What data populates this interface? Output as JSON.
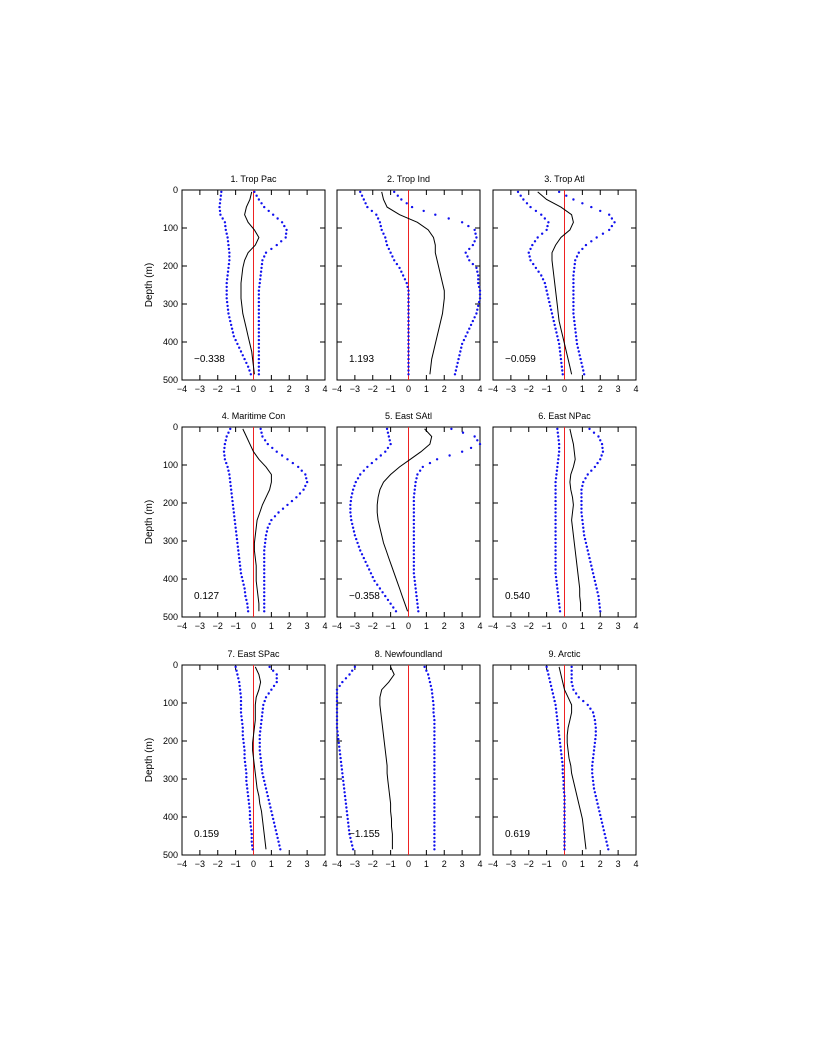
{
  "colors": {
    "mean": "#000000",
    "bounds": "#1010ee",
    "zero": "#ee2222",
    "axis": "#000000"
  },
  "chart_data": [
    {
      "type": "line",
      "title": "1. Trop Pac",
      "annotation": "−0.338",
      "xlim": [
        -4,
        4
      ],
      "ylim": [
        0,
        500
      ],
      "y_inverted": true,
      "xlabel": "",
      "ylabel": "Depth (m)",
      "xticks": [
        "−4",
        "−3",
        "−2",
        "−1",
        "0",
        "1",
        "2",
        "3",
        "4"
      ],
      "yticks": [
        "0",
        "100",
        "200",
        "300",
        "400",
        "500"
      ],
      "depth": [
        5,
        25,
        45,
        65,
        85,
        105,
        125,
        145,
        165,
        185,
        205,
        225,
        245,
        265,
        285,
        305,
        325,
        345,
        365,
        385,
        405,
        425,
        445,
        465,
        485
      ],
      "mean": [
        -0.1,
        -0.2,
        -0.4,
        -0.5,
        -0.3,
        0.05,
        0.3,
        0.1,
        -0.3,
        -0.5,
        -0.6,
        -0.65,
        -0.7,
        -0.7,
        -0.7,
        -0.65,
        -0.6,
        -0.5,
        -0.4,
        -0.3,
        -0.2,
        -0.1,
        -0.05,
        0,
        0.05
      ],
      "lower": [
        -1.8,
        -1.85,
        -1.9,
        -1.85,
        -1.6,
        -1.55,
        -1.45,
        -1.4,
        -1.35,
        -1.35,
        -1.4,
        -1.45,
        -1.5,
        -1.5,
        -1.5,
        -1.45,
        -1.4,
        -1.3,
        -1.2,
        -1.1,
        -0.9,
        -0.7,
        -0.5,
        -0.3,
        -0.15
      ],
      "upper": [
        0.05,
        0.3,
        0.6,
        1.1,
        1.6,
        1.85,
        1.8,
        1.3,
        0.7,
        0.5,
        0.45,
        0.4,
        0.35,
        0.3,
        0.3,
        0.3,
        0.3,
        0.3,
        0.3,
        0.3,
        0.3,
        0.3,
        0.3,
        0.3,
        0.3
      ]
    },
    {
      "type": "line",
      "title": "2. Trop Ind",
      "annotation": "1.193",
      "xlim": [
        -4,
        4
      ],
      "ylim": [
        0,
        500
      ],
      "y_inverted": true,
      "xlabel": "",
      "ylabel": "",
      "xticks": [
        "−4",
        "−3",
        "−2",
        "−1",
        "0",
        "1",
        "2",
        "3",
        "4"
      ],
      "yticks": [
        "0",
        "100",
        "200",
        "300",
        "400",
        "500"
      ],
      "depth": [
        5,
        25,
        45,
        65,
        85,
        105,
        125,
        145,
        165,
        185,
        205,
        225,
        245,
        265,
        285,
        305,
        325,
        345,
        365,
        385,
        405,
        425,
        445,
        465,
        485
      ],
      "mean": [
        -1.5,
        -1.4,
        -1.2,
        -0.5,
        0.5,
        1.1,
        1.4,
        1.5,
        1.5,
        1.6,
        1.7,
        1.8,
        1.9,
        2.0,
        2.0,
        1.95,
        1.9,
        1.8,
        1.7,
        1.6,
        1.5,
        1.4,
        1.3,
        1.25,
        1.2
      ],
      "lower": [
        -2.7,
        -2.5,
        -2.3,
        -1.8,
        -1.6,
        -1.5,
        -1.3,
        -1.2,
        -1.0,
        -0.8,
        -0.5,
        -0.3,
        -0.1,
        0,
        0,
        0,
        0,
        0,
        0,
        0,
        0,
        0,
        0,
        0,
        0
      ],
      "upper": [
        -0.8,
        -0.4,
        0.2,
        1.5,
        3.0,
        3.7,
        3.8,
        3.6,
        3.2,
        3.4,
        3.8,
        3.9,
        3.9,
        4.0,
        4.0,
        3.9,
        3.8,
        3.6,
        3.4,
        3.2,
        3.0,
        2.9,
        2.8,
        2.7,
        2.6
      ]
    },
    {
      "type": "line",
      "title": "3. Trop Atl",
      "annotation": "−0.059",
      "xlim": [
        -4,
        4
      ],
      "ylim": [
        0,
        500
      ],
      "y_inverted": true,
      "xlabel": "",
      "ylabel": "",
      "xticks": [
        "−4",
        "−3",
        "−2",
        "−1",
        "0",
        "1",
        "2",
        "3",
        "4"
      ],
      "yticks": [
        "0",
        "100",
        "200",
        "300",
        "400",
        "500"
      ],
      "depth": [
        5,
        25,
        45,
        65,
        85,
        105,
        125,
        145,
        165,
        185,
        205,
        225,
        245,
        265,
        285,
        305,
        325,
        345,
        365,
        385,
        405,
        425,
        445,
        465,
        485
      ],
      "mean": [
        -1.5,
        -1.0,
        -0.2,
        0.4,
        0.5,
        0.3,
        -0.2,
        -0.5,
        -0.7,
        -0.7,
        -0.65,
        -0.6,
        -0.55,
        -0.5,
        -0.45,
        -0.4,
        -0.35,
        -0.3,
        -0.2,
        -0.1,
        0,
        0.1,
        0.2,
        0.3,
        0.4
      ],
      "lower": [
        -2.6,
        -2.3,
        -1.9,
        -1.3,
        -0.9,
        -1.0,
        -1.5,
        -1.8,
        -2.0,
        -1.9,
        -1.6,
        -1.3,
        -1.1,
        -1.0,
        -0.9,
        -0.8,
        -0.7,
        -0.6,
        -0.5,
        -0.4,
        -0.3,
        -0.25,
        -0.2,
        -0.15,
        -0.1
      ],
      "upper": [
        -0.3,
        0.5,
        1.5,
        2.5,
        2.8,
        2.5,
        1.8,
        1.2,
        0.8,
        0.6,
        0.55,
        0.5,
        0.5,
        0.5,
        0.5,
        0.5,
        0.5,
        0.55,
        0.6,
        0.65,
        0.7,
        0.8,
        0.9,
        1.0,
        1.1
      ]
    },
    {
      "type": "line",
      "title": "4. Maritime Con",
      "annotation": "0.127",
      "xlim": [
        -4,
        4
      ],
      "ylim": [
        0,
        500
      ],
      "y_inverted": true,
      "xlabel": "",
      "ylabel": "Depth (m)",
      "xticks": [
        "−4",
        "−3",
        "−2",
        "−1",
        "0",
        "1",
        "2",
        "3",
        "4"
      ],
      "yticks": [
        "0",
        "100",
        "200",
        "300",
        "400",
        "500"
      ],
      "depth": [
        5,
        25,
        45,
        65,
        85,
        105,
        125,
        145,
        165,
        185,
        205,
        225,
        245,
        265,
        285,
        305,
        325,
        345,
        365,
        385,
        405,
        425,
        445,
        465,
        485
      ],
      "mean": [
        -0.6,
        -0.4,
        -0.2,
        0,
        0.3,
        0.7,
        1.0,
        1.0,
        0.9,
        0.7,
        0.5,
        0.35,
        0.2,
        0.15,
        0.1,
        0.05,
        0.05,
        0.1,
        0.15,
        0.15,
        0.15,
        0.2,
        0.25,
        0.3,
        0.3
      ],
      "lower": [
        -1.3,
        -1.5,
        -1.6,
        -1.65,
        -1.6,
        -1.45,
        -1.35,
        -1.3,
        -1.25,
        -1.2,
        -1.15,
        -1.1,
        -1.05,
        -1.0,
        -0.95,
        -0.9,
        -0.85,
        -0.8,
        -0.75,
        -0.7,
        -0.6,
        -0.5,
        -0.45,
        -0.35,
        -0.3
      ],
      "upper": [
        0.4,
        0.5,
        0.8,
        1.3,
        1.9,
        2.5,
        2.9,
        3.0,
        2.8,
        2.4,
        1.9,
        1.4,
        1.0,
        0.8,
        0.7,
        0.65,
        0.6,
        0.6,
        0.6,
        0.6,
        0.6,
        0.6,
        0.6,
        0.6,
        0.6
      ]
    },
    {
      "type": "line",
      "title": "5. East SAtl",
      "annotation": "−0.358",
      "xlim": [
        -4,
        4
      ],
      "ylim": [
        0,
        500
      ],
      "y_inverted": true,
      "xlabel": "",
      "ylabel": "",
      "xticks": [
        "−4",
        "−3",
        "−2",
        "−1",
        "0",
        "1",
        "2",
        "3",
        "4"
      ],
      "yticks": [
        "0",
        "100",
        "200",
        "300",
        "400",
        "500"
      ],
      "depth": [
        5,
        25,
        45,
        65,
        85,
        105,
        125,
        145,
        165,
        185,
        205,
        225,
        245,
        265,
        285,
        305,
        325,
        345,
        365,
        385,
        405,
        425,
        445,
        465,
        485
      ],
      "mean": [
        0.9,
        1.3,
        1.2,
        0.7,
        0.1,
        -0.5,
        -1.0,
        -1.4,
        -1.6,
        -1.7,
        -1.75,
        -1.75,
        -1.7,
        -1.6,
        -1.5,
        -1.4,
        -1.25,
        -1.1,
        -0.95,
        -0.8,
        -0.65,
        -0.5,
        -0.35,
        -0.2,
        -0.05
      ],
      "lower": [
        -1.2,
        -1.1,
        -1.0,
        -1.3,
        -1.8,
        -2.3,
        -2.7,
        -2.95,
        -3.1,
        -3.2,
        -3.25,
        -3.25,
        -3.2,
        -3.1,
        -3.0,
        -2.85,
        -2.7,
        -2.5,
        -2.3,
        -2.1,
        -1.9,
        -1.6,
        -1.3,
        -1.0,
        -0.7
      ],
      "upper": [
        2.4,
        3.7,
        4.0,
        3.0,
        1.6,
        0.8,
        0.5,
        0.4,
        0.35,
        0.3,
        0.3,
        0.3,
        0.3,
        0.3,
        0.3,
        0.3,
        0.3,
        0.3,
        0.3,
        0.3,
        0.35,
        0.4,
        0.45,
        0.5,
        0.55
      ]
    },
    {
      "type": "line",
      "title": "6. East NPac",
      "annotation": "0.540",
      "xlim": [
        -4,
        4
      ],
      "ylim": [
        0,
        500
      ],
      "y_inverted": true,
      "xlabel": "",
      "ylabel": "",
      "xticks": [
        "−4",
        "−3",
        "−2",
        "−1",
        "0",
        "1",
        "2",
        "3",
        "4"
      ],
      "yticks": [
        "0",
        "100",
        "200",
        "300",
        "400",
        "500"
      ],
      "depth": [
        5,
        25,
        45,
        65,
        85,
        105,
        125,
        145,
        165,
        185,
        205,
        225,
        245,
        265,
        285,
        305,
        325,
        345,
        365,
        385,
        405,
        425,
        445,
        465,
        485
      ],
      "mean": [
        0.3,
        0.4,
        0.5,
        0.55,
        0.6,
        0.5,
        0.35,
        0.3,
        0.35,
        0.45,
        0.5,
        0.45,
        0.4,
        0.45,
        0.5,
        0.55,
        0.6,
        0.65,
        0.7,
        0.75,
        0.8,
        0.85,
        0.85,
        0.9,
        0.9
      ],
      "lower": [
        -0.4,
        -0.35,
        -0.3,
        -0.3,
        -0.35,
        -0.4,
        -0.45,
        -0.5,
        -0.5,
        -0.5,
        -0.5,
        -0.5,
        -0.5,
        -0.5,
        -0.5,
        -0.5,
        -0.5,
        -0.5,
        -0.5,
        -0.5,
        -0.45,
        -0.4,
        -0.35,
        -0.3,
        -0.25
      ],
      "upper": [
        1.4,
        1.9,
        2.1,
        2.15,
        2.0,
        1.7,
        1.3,
        1.05,
        0.95,
        0.95,
        0.95,
        0.95,
        1.0,
        1.05,
        1.1,
        1.2,
        1.3,
        1.4,
        1.5,
        1.6,
        1.7,
        1.8,
        1.9,
        1.95,
        2.0
      ]
    },
    {
      "type": "line",
      "title": "7. East SPac",
      "annotation": "0.159",
      "xlim": [
        -4,
        4
      ],
      "ylim": [
        0,
        500
      ],
      "y_inverted": true,
      "xlabel": "",
      "ylabel": "Depth (m)",
      "xticks": [
        "−4",
        "−3",
        "−2",
        "−1",
        "0",
        "1",
        "2",
        "3",
        "4"
      ],
      "yticks": [
        "0",
        "100",
        "200",
        "300",
        "400",
        "500"
      ],
      "depth": [
        5,
        25,
        45,
        65,
        85,
        105,
        125,
        145,
        165,
        185,
        205,
        225,
        245,
        265,
        285,
        305,
        325,
        345,
        365,
        385,
        405,
        425,
        445,
        465,
        485
      ],
      "mean": [
        0.1,
        0.3,
        0.4,
        0.3,
        0.15,
        0.1,
        0.1,
        0.1,
        0.05,
        0.0,
        -0.05,
        -0.05,
        0.0,
        0.05,
        0.1,
        0.15,
        0.2,
        0.3,
        0.35,
        0.45,
        0.5,
        0.55,
        0.6,
        0.65,
        0.7
      ],
      "lower": [
        -1.0,
        -0.9,
        -0.8,
        -0.75,
        -0.7,
        -0.7,
        -0.7,
        -0.65,
        -0.6,
        -0.6,
        -0.55,
        -0.5,
        -0.5,
        -0.45,
        -0.4,
        -0.4,
        -0.35,
        -0.3,
        -0.25,
        -0.2,
        -0.2,
        -0.15,
        -0.1,
        -0.1,
        -0.05
      ],
      "upper": [
        0.9,
        1.3,
        1.3,
        1.0,
        0.7,
        0.55,
        0.5,
        0.45,
        0.4,
        0.35,
        0.35,
        0.35,
        0.4,
        0.45,
        0.5,
        0.6,
        0.7,
        0.8,
        0.9,
        1.0,
        1.1,
        1.2,
        1.3,
        1.4,
        1.5
      ]
    },
    {
      "type": "line",
      "title": "8. Newfoundland",
      "annotation": "−1.155",
      "xlim": [
        -4,
        4
      ],
      "ylim": [
        0,
        500
      ],
      "y_inverted": true,
      "xlabel": "",
      "ylabel": "",
      "xticks": [
        "−4",
        "−3",
        "−2",
        "−1",
        "0",
        "1",
        "2",
        "3",
        "4"
      ],
      "yticks": [
        "0",
        "100",
        "200",
        "300",
        "400",
        "500"
      ],
      "depth": [
        5,
        25,
        45,
        65,
        85,
        105,
        125,
        145,
        165,
        185,
        205,
        225,
        245,
        265,
        285,
        305,
        325,
        345,
        365,
        385,
        405,
        425,
        445,
        465,
        485
      ],
      "mean": [
        -1.0,
        -0.8,
        -1.1,
        -1.5,
        -1.6,
        -1.6,
        -1.55,
        -1.5,
        -1.45,
        -1.4,
        -1.35,
        -1.3,
        -1.25,
        -1.2,
        -1.2,
        -1.15,
        -1.1,
        -1.05,
        -1.0,
        -1.0,
        -0.95,
        -0.95,
        -0.9,
        -0.9,
        -0.9
      ],
      "lower": [
        -3.0,
        -3.3,
        -3.7,
        -4.0,
        -4.0,
        -4.0,
        -4.0,
        -4.0,
        -4.0,
        -3.95,
        -3.9,
        -3.85,
        -3.8,
        -3.75,
        -3.7,
        -3.65,
        -3.6,
        -3.55,
        -3.5,
        -3.45,
        -3.4,
        -3.35,
        -3.3,
        -3.2,
        -3.1
      ],
      "upper": [
        0.9,
        1.1,
        1.2,
        1.3,
        1.35,
        1.4,
        1.4,
        1.45,
        1.45,
        1.45,
        1.45,
        1.45,
        1.45,
        1.45,
        1.45,
        1.45,
        1.45,
        1.45,
        1.45,
        1.45,
        1.45,
        1.45,
        1.45,
        1.45,
        1.45
      ]
    },
    {
      "type": "line",
      "title": "9. Arctic",
      "annotation": "0.619",
      "xlim": [
        -4,
        4
      ],
      "ylim": [
        0,
        500
      ],
      "y_inverted": true,
      "xlabel": "",
      "ylabel": "",
      "xticks": [
        "−4",
        "−3",
        "−2",
        "−1",
        "0",
        "1",
        "2",
        "3",
        "4"
      ],
      "yticks": [
        "0",
        "100",
        "200",
        "300",
        "400",
        "500"
      ],
      "depth": [
        5,
        25,
        45,
        65,
        85,
        105,
        125,
        145,
        165,
        185,
        205,
        225,
        245,
        265,
        285,
        305,
        325,
        345,
        365,
        385,
        405,
        425,
        445,
        465,
        485
      ],
      "mean": [
        -0.3,
        -0.2,
        -0.1,
        0.0,
        0.2,
        0.4,
        0.4,
        0.3,
        0.2,
        0.15,
        0.15,
        0.2,
        0.25,
        0.35,
        0.4,
        0.5,
        0.6,
        0.7,
        0.8,
        0.9,
        1.0,
        1.05,
        1.1,
        1.15,
        1.2
      ],
      "lower": [
        -1.0,
        -0.9,
        -0.8,
        -0.7,
        -0.6,
        -0.5,
        -0.45,
        -0.4,
        -0.35,
        -0.3,
        -0.25,
        -0.2,
        -0.15,
        -0.1,
        -0.1,
        -0.05,
        -0.05,
        0,
        0,
        0,
        0,
        0,
        0,
        0,
        0
      ],
      "upper": [
        0.4,
        0.4,
        0.4,
        0.5,
        0.8,
        1.3,
        1.6,
        1.7,
        1.75,
        1.75,
        1.7,
        1.65,
        1.6,
        1.55,
        1.55,
        1.6,
        1.65,
        1.75,
        1.85,
        1.95,
        2.05,
        2.15,
        2.25,
        2.35,
        2.45
      ]
    }
  ]
}
